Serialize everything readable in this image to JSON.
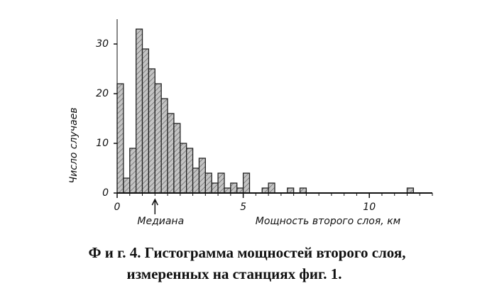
{
  "chart_data": {
    "type": "histogram",
    "ylabel": "Число случаев",
    "xlabel": "Мощность второго слоя, км",
    "annotation": "Медиана",
    "median": 1.5,
    "caption": [
      "Ф и г. 4. Гистограмма мощностей второго слоя,",
      "измеренных на станциях фиг. 1."
    ],
    "bins": [
      0,
      0.25,
      0.5,
      0.75,
      1,
      1.25,
      1.5,
      1.75,
      2,
      2.25,
      2.5,
      2.75,
      3,
      3.25,
      3.5,
      3.75,
      4,
      4.25,
      4.5,
      4.75,
      5,
      5.25,
      5.5,
      5.75,
      6,
      6.25,
      6.5,
      6.75,
      7,
      7.25,
      7.5,
      7.75,
      8,
      8.25,
      8.5,
      8.75,
      9,
      9.25,
      9.5,
      9.75,
      10,
      10.25,
      10.5,
      10.75,
      11,
      11.25,
      11.5,
      11.75,
      12
    ],
    "values": [
      22,
      3,
      9,
      33,
      29,
      25,
      22,
      19,
      16,
      14,
      10,
      9,
      5,
      7,
      4,
      2,
      4,
      1,
      2,
      1,
      4,
      0,
      0,
      1,
      2,
      0,
      0,
      1,
      0,
      1,
      0,
      0,
      0,
      0,
      0,
      0,
      0,
      0,
      0,
      0,
      0,
      0,
      0,
      0,
      0,
      0,
      1,
      0
    ],
    "color": "#9a9a9a",
    "xlim": [
      0,
      12.5
    ],
    "xticks": [
      0,
      5,
      10
    ],
    "ylim": [
      0,
      35
    ],
    "yticks": [
      0,
      10,
      20,
      30
    ]
  }
}
